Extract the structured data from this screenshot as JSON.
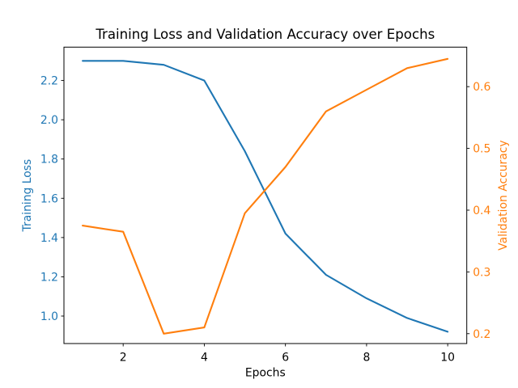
{
  "figure": {
    "title": "Training Loss and Validation Accuracy over Epochs",
    "xlabel": "Epochs",
    "ylabel_left": "Training Loss",
    "ylabel_right": "Validation Accuracy"
  },
  "colors": {
    "loss_line": "#1f77b4",
    "accuracy_line": "#ff7f0e",
    "text": "#000000",
    "background": "#ffffff",
    "spine": "#000000"
  },
  "chart_data": {
    "type": "line",
    "title": "Training Loss and Validation Accuracy over Epochs",
    "xlabel": "Epochs",
    "ylabel_left": "Training Loss",
    "ylabel_right": "Validation Accuracy",
    "grid": false,
    "legend": "none",
    "x": [
      1,
      2,
      3,
      4,
      5,
      6,
      7,
      8,
      9,
      10
    ],
    "series": [
      {
        "name": "Training Loss",
        "axis": "left",
        "color": "#1f77b4",
        "values": [
          2.3,
          2.3,
          2.28,
          2.2,
          1.84,
          1.42,
          1.21,
          1.09,
          0.99,
          0.92
        ]
      },
      {
        "name": "Validation Accuracy",
        "axis": "right",
        "color": "#ff7f0e",
        "values": [
          0.375,
          0.365,
          0.2,
          0.21,
          0.395,
          0.47,
          0.56,
          0.595,
          0.63,
          0.645
        ]
      }
    ],
    "axes": {
      "x": {
        "ticks": [
          "2",
          "4",
          "6",
          "8",
          "10"
        ],
        "lim": [
          0.54,
          10.47
        ]
      },
      "left": {
        "ticks": [
          "1.0",
          "1.2",
          "1.4",
          "1.6",
          "1.8",
          "2.0",
          "2.2"
        ],
        "lim": [
          0.86,
          2.37
        ]
      },
      "right": {
        "ticks": [
          "0.2",
          "0.3",
          "0.4",
          "0.5",
          "0.6"
        ],
        "lim": [
          0.184,
          0.664
        ]
      }
    }
  }
}
